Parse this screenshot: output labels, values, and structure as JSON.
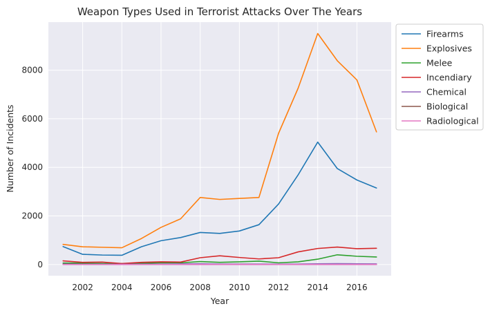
{
  "chart_data": {
    "type": "line",
    "title": "Weapon Types Used in Terrorist Attacks Over The Years",
    "xlabel": "Year",
    "ylabel": "Number of Incidents",
    "xlim": [
      2000.25,
      2017.75
    ],
    "ylim": [
      -460,
      9980
    ],
    "xticks": [
      2002,
      2004,
      2006,
      2008,
      2010,
      2012,
      2014,
      2016
    ],
    "yticks": [
      0,
      2000,
      4000,
      6000,
      8000
    ],
    "grid": true,
    "legend_position": "outside-right-top",
    "background": "#eaeaf2",
    "x": [
      2001,
      2002,
      2003,
      2004,
      2005,
      2006,
      2007,
      2008,
      2009,
      2010,
      2011,
      2012,
      2013,
      2014,
      2015,
      2016,
      2017
    ],
    "series": [
      {
        "name": "Firearms",
        "color": "#1f77b4",
        "values": [
          740,
          420,
          390,
          380,
          730,
          980,
          1110,
          1320,
          1280,
          1380,
          1640,
          2490,
          3690,
          5040,
          3950,
          3480,
          3150
        ]
      },
      {
        "name": "Explosives",
        "color": "#ff7f0e",
        "values": [
          830,
          730,
          710,
          690,
          1070,
          1530,
          1880,
          2760,
          2680,
          2720,
          2760,
          5400,
          7260,
          9510,
          8390,
          7600,
          5460
        ]
      },
      {
        "name": "Melee",
        "color": "#2ca02c",
        "values": [
          60,
          60,
          40,
          40,
          50,
          70,
          70,
          120,
          90,
          110,
          140,
          70,
          110,
          220,
          400,
          340,
          310
        ]
      },
      {
        "name": "Incendiary",
        "color": "#d62728",
        "values": [
          150,
          90,
          100,
          40,
          90,
          110,
          100,
          280,
          360,
          290,
          230,
          280,
          520,
          660,
          720,
          650,
          670
        ]
      },
      {
        "name": "Chemical",
        "color": "#9467bd",
        "values": [
          20,
          15,
          10,
          10,
          15,
          20,
          25,
          30,
          20,
          20,
          20,
          15,
          20,
          30,
          35,
          30,
          25
        ]
      },
      {
        "name": "Biological",
        "color": "#8c564b",
        "values": [
          5,
          3,
          2,
          2,
          2,
          3,
          2,
          2,
          2,
          3,
          2,
          2,
          2,
          2,
          2,
          2,
          2
        ]
      },
      {
        "name": "Radiological",
        "color": "#e377c2",
        "values": [
          1,
          1,
          1,
          1,
          1,
          1,
          1,
          1,
          1,
          1,
          1,
          1,
          1,
          1,
          1,
          1,
          1
        ]
      }
    ]
  }
}
